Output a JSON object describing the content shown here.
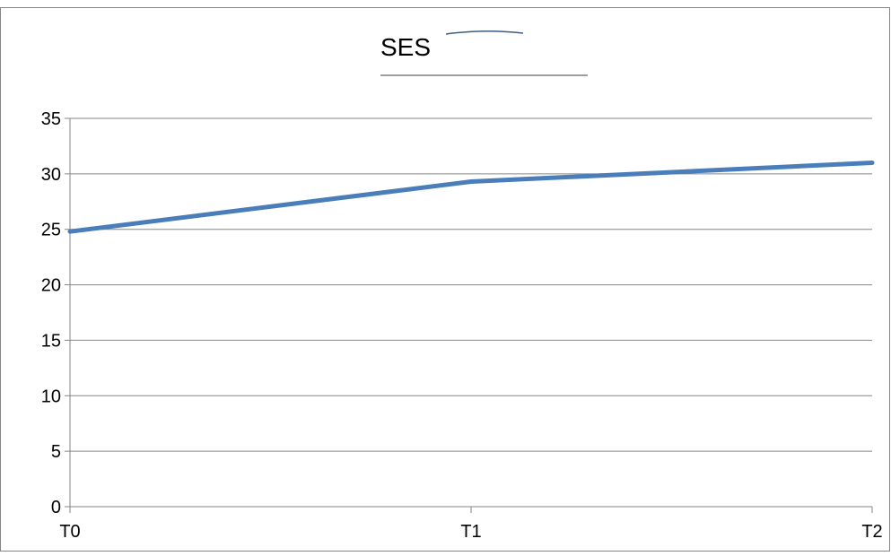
{
  "chart_data": {
    "type": "line",
    "title": "SES",
    "categories": [
      "T0",
      "T1",
      "T2"
    ],
    "series": [
      {
        "values": [
          24.8,
          29.3,
          31.0
        ],
        "color": "#4a7ebb"
      }
    ],
    "ylim": [
      0,
      35
    ],
    "yticks": [
      0,
      5,
      10,
      15,
      20,
      25,
      30,
      35
    ],
    "grid": true,
    "legend": "none"
  }
}
